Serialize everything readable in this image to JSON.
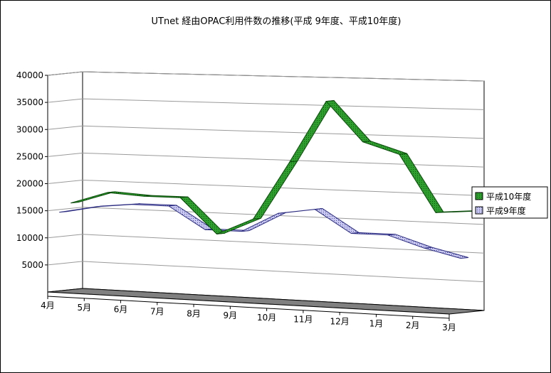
{
  "chart_data": {
    "type": "line",
    "subtype": "3d-ribbon",
    "title": "UTnet 経由OPAC利用件数の推移(平成 9年度、平成10年度)",
    "xlabel": "",
    "ylabel": "",
    "categories": [
      "4月",
      "5月",
      "6月",
      "7月",
      "8月",
      "9月",
      "10月",
      "11月",
      "12月",
      "1月",
      "2月",
      "3月"
    ],
    "ylim": [
      0,
      40000
    ],
    "yticks": [
      5000,
      10000,
      15000,
      20000,
      25000,
      30000,
      35000,
      40000
    ],
    "grid": true,
    "legend_position": "right",
    "series": [
      {
        "name": "平成10年度",
        "color": "#2e9e2e",
        "values": [
          16000,
          18200,
          17800,
          17800,
          11500,
          14500,
          25000,
          36000,
          29000,
          27000,
          17000,
          17500
        ]
      },
      {
        "name": "平成9年度",
        "color": "#c8c8f0",
        "values": [
          14500,
          15800,
          16500,
          16500,
          12500,
          12500,
          16000,
          17000,
          13000,
          13000,
          11000,
          9500
        ]
      }
    ],
    "colors": {
      "floor": "#808080",
      "back_wall": "#ffffff",
      "gridline": "#9a9a9a",
      "axis": "#000000"
    }
  }
}
